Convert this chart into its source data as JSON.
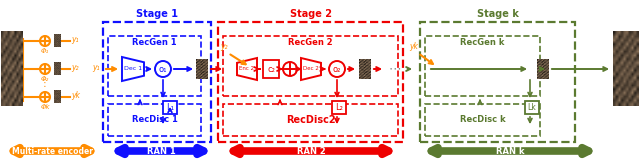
{
  "orange": "#FF8C00",
  "blue": "#1010FF",
  "red": "#EE0000",
  "dark_green": "#5B7A30",
  "stage1_label": "Stage 1",
  "stage2_label": "Stage 2",
  "stagek_label": "Stage k",
  "ran1_label": "RAN 1",
  "ran2_label": "RAN 2",
  "rank_label": "RAN k",
  "encoder_label": "Multi-rate encoder",
  "recgen1": "RecGen 1",
  "recgen2": "RecGen 2",
  "recgenk": "RecGen k",
  "recdisc1": "RecDisc 1",
  "recdisc2": "RecDisc2",
  "recdisck": "RecDisc k",
  "figw": 6.4,
  "figh": 1.64,
  "dpi": 100
}
